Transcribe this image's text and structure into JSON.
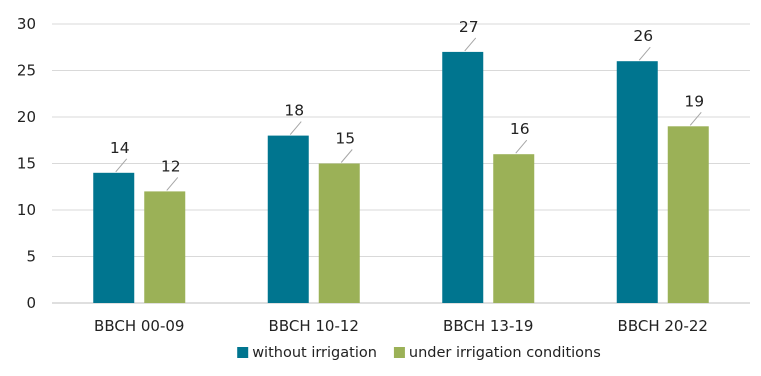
{
  "chart_data": {
    "type": "bar",
    "categories": [
      "BBCH 00-09",
      "BBCH 10-12",
      "BBCH 13-19",
      "BBCH 20-22"
    ],
    "series": [
      {
        "name": "without irrigation",
        "values": [
          14,
          18,
          27,
          26
        ],
        "color": "#00758f"
      },
      {
        "name": "under irrigation conditions",
        "values": [
          12,
          15,
          16,
          19
        ],
        "color": "#9bb157"
      }
    ],
    "ylim": [
      0,
      30
    ],
    "yticks": [
      0,
      5,
      10,
      15,
      20,
      25,
      30
    ],
    "grid": true,
    "legend_position": "bottom",
    "title": "",
    "xlabel": "",
    "ylabel": ""
  }
}
